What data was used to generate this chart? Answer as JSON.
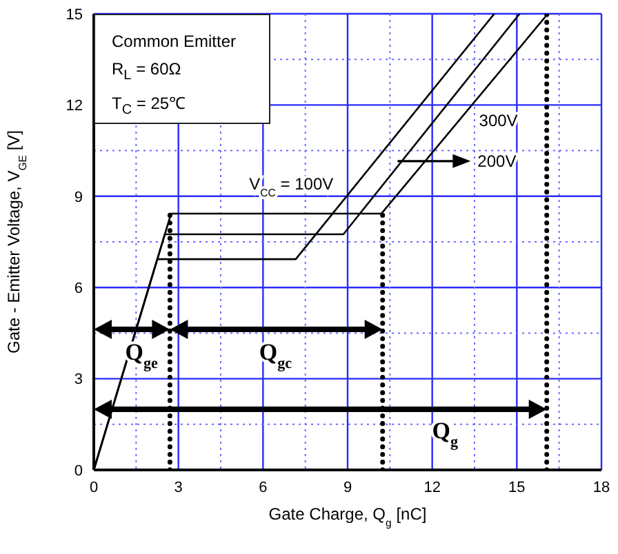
{
  "chart_data": {
    "type": "line",
    "xlabel": "Gate Charge, Q$_{g}$ [nC]",
    "ylabel": "Gate - Emitter Voltage, V$_{GE}$ [V]",
    "xlim": [
      0,
      18
    ],
    "ylim": [
      0,
      15
    ],
    "xticks": [
      0,
      {
        "value": 1.5,
        "label": null
      },
      3,
      {
        "value": 4.5,
        "label": null
      },
      6,
      {
        "value": 7.5,
        "label": null
      },
      9,
      {
        "value": 10.5,
        "label": null
      },
      12,
      {
        "value": 13.5,
        "label": null
      },
      15,
      {
        "value": 16.5,
        "label": null
      },
      18
    ],
    "yticks": [
      0,
      {
        "value": 1.5,
        "label": null
      },
      3,
      {
        "value": 4.5,
        "label": null
      },
      6,
      {
        "value": 7.5,
        "label": null
      },
      9,
      {
        "value": 10.5,
        "label": null
      },
      12,
      {
        "value": 13.5,
        "label": null
      },
      15
    ],
    "grid": true,
    "legend": false,
    "marker": "none",
    "series": [
      {
        "color": "#000000",
        "line_style": "solid",
        "x": [
          0,
          2.25,
          7.16,
          14.2
        ],
        "values": [
          0,
          6.93,
          6.93,
          15
        ]
      },
      {
        "color": "#000000",
        "line_style": "solid",
        "x": [
          0,
          2.52,
          8.85,
          15.1
        ],
        "values": [
          0,
          7.75,
          7.75,
          15
        ]
      },
      {
        "color": "#000000",
        "line_style": "solid",
        "x": [
          0,
          2.74,
          10.2,
          16.1
        ],
        "values": [
          0,
          8.43,
          8.43,
          15
        ]
      },
      {
        "color": "#000000",
        "line_style": "dotted",
        "x": [
          2.7,
          2.7
        ],
        "values": [
          0,
          8.43
        ]
      },
      {
        "color": "#000000",
        "line_style": "dotted",
        "x": [
          10.24,
          10.24
        ],
        "values": [
          0,
          8.43
        ]
      },
      {
        "color": "#000000",
        "line_style": "dotted",
        "x": [
          16.06,
          16.06
        ],
        "values": [
          0,
          15
        ]
      }
    ],
    "annotations": [
      "Common Emitter",
      "R$_{L}$ = 60Ω",
      "T$_{C}$ = 25℃",
      "V$_{CC}$ = 100V",
      "300V",
      "200V",
      "Q$_{ge}$",
      "Q$_{gc}$",
      "Q$_{g}$"
    ]
  }
}
